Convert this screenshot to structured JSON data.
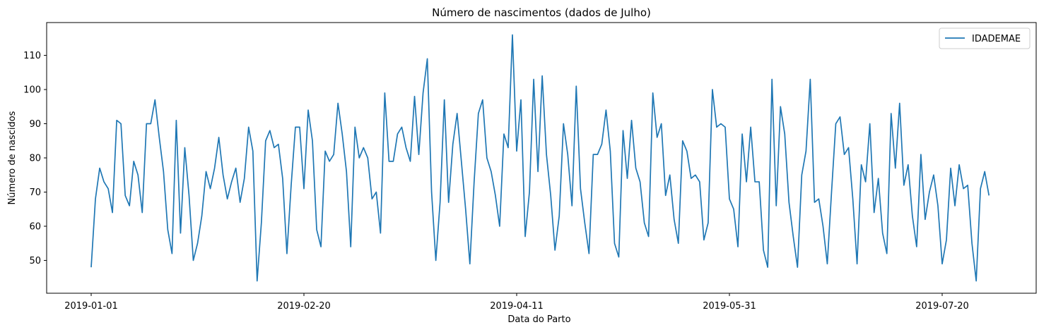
{
  "chart_data": {
    "type": "line",
    "title": "Número de nascimentos (dados de Julho)",
    "xlabel": "Data do Parto",
    "ylabel": "Número de nascidos",
    "x_tick_labels": [
      "2019-01-01",
      "2019-02-20",
      "2019-04-11",
      "2019-05-31",
      "2019-07-20"
    ],
    "y_ticks": [
      50,
      60,
      70,
      80,
      90,
      100,
      110
    ],
    "ylim": [
      40.4,
      119.6
    ],
    "x_start": "2019-01-01",
    "x_end": "2019-07-31",
    "legend_position": "top-right",
    "grid": false,
    "series": [
      {
        "name": "IDADEMAE",
        "color": "#1f77b4",
        "values": [
          48,
          68,
          77,
          73,
          71,
          64,
          91,
          90,
          69,
          66,
          79,
          75,
          64,
          90,
          90,
          97,
          86,
          76,
          59,
          52,
          91,
          58,
          83,
          69,
          50,
          55,
          63,
          76,
          71,
          77,
          86,
          75,
          68,
          73,
          77,
          67,
          74,
          89,
          82,
          44,
          61,
          85,
          88,
          83,
          84,
          74,
          52,
          72,
          89,
          89,
          71,
          94,
          85,
          59,
          54,
          82,
          79,
          81,
          96,
          87,
          76,
          54,
          89,
          80,
          83,
          80,
          68,
          70,
          58,
          99,
          79,
          79,
          87,
          89,
          83,
          79,
          98,
          81,
          99,
          109,
          70,
          50,
          67,
          97,
          67,
          84,
          93,
          79,
          65,
          49,
          73,
          93,
          97,
          80,
          76,
          69,
          60,
          87,
          83,
          116,
          82,
          97,
          57,
          70,
          103,
          76,
          104,
          81,
          69,
          53,
          63,
          90,
          81,
          66,
          101,
          71,
          61,
          52,
          81,
          81,
          84,
          94,
          82,
          55,
          51,
          88,
          74,
          91,
          77,
          73,
          61,
          57,
          99,
          86,
          90,
          69,
          75,
          62,
          55,
          85,
          82,
          74,
          75,
          73,
          56,
          61,
          100,
          89,
          90,
          89,
          68,
          65,
          54,
          87,
          73,
          89,
          73,
          73,
          53,
          48,
          103,
          66,
          95,
          87,
          67,
          57,
          48,
          75,
          82,
          103,
          67,
          68,
          60,
          49,
          70,
          90,
          92,
          81,
          83,
          68,
          49,
          78,
          73,
          90,
          64,
          74,
          58,
          52,
          93,
          77,
          96,
          72,
          78,
          63,
          54,
          81,
          62,
          70,
          75,
          66,
          49,
          56,
          77,
          66,
          78,
          71,
          72,
          55,
          44,
          71,
          76,
          69
        ]
      }
    ]
  }
}
